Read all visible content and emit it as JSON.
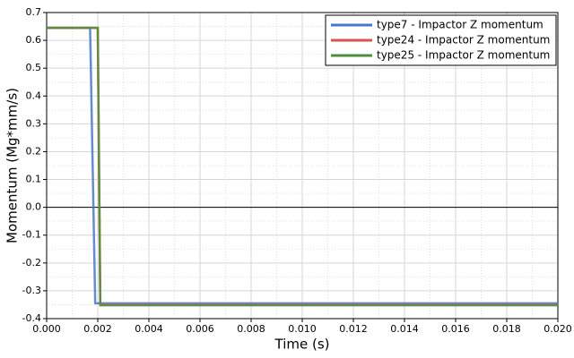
{
  "chart_data": {
    "type": "line",
    "xlabel": "Time (s)",
    "ylabel": "Momentum (Mg*mm/s)",
    "series": [
      {
        "name": "type7 - Impactor Z momentum",
        "color": "#4a78c8",
        "x": [
          0,
          0.0017,
          0.0019,
          0.02
        ],
        "values": [
          0.645,
          0.645,
          -0.345,
          -0.345
        ]
      },
      {
        "name": "type24 - Impactor Z momentum",
        "color": "#d9534a",
        "x": [
          0,
          0.002,
          0.0021,
          0.02
        ],
        "values": [
          0.645,
          0.645,
          -0.35,
          -0.35
        ]
      },
      {
        "name": "type25 - Impactor Z momentum",
        "color": "#4e8f3e",
        "x": [
          0,
          0.002,
          0.0021,
          0.02
        ],
        "values": [
          0.645,
          0.645,
          -0.352,
          -0.352
        ]
      }
    ],
    "xlim": [
      0,
      0.02
    ],
    "xticks": [
      {
        "value": 0,
        "label": "0.000"
      },
      {
        "value": 0.002,
        "label": "0.002"
      },
      {
        "value": 0.004,
        "label": "0.004"
      },
      {
        "value": 0.006,
        "label": "0.006"
      },
      {
        "value": 0.008,
        "label": "0.008"
      },
      {
        "value": 0.01,
        "label": "0.010"
      },
      {
        "value": 0.012,
        "label": "0.012"
      },
      {
        "value": 0.014,
        "label": "0.014"
      },
      {
        "value": 0.016,
        "label": "0.016"
      },
      {
        "value": 0.018,
        "label": "0.018"
      },
      {
        "value": 0.02,
        "label": "0.020"
      }
    ],
    "ylim": [
      -0.4,
      0.7
    ],
    "yticks": [
      -0.4,
      -0.3,
      -0.2,
      -0.1,
      {
        "value": 0,
        "label": "0.0"
      },
      0.1,
      0.2,
      0.3,
      0.4,
      0.5,
      0.6,
      0.7
    ],
    "grid": true,
    "minor_grid": true,
    "zero_line": true,
    "legend": "upper right"
  }
}
